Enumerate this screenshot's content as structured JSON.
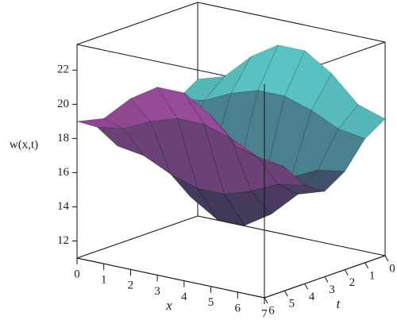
{
  "chart_data": {
    "type": "surface",
    "zlabel": "w(x,t)",
    "xlabel": "x",
    "ylabel": "t",
    "x": [
      0,
      1,
      2,
      3,
      4,
      5,
      6,
      7
    ],
    "t": [
      0,
      1,
      2,
      3,
      4,
      5,
      6
    ],
    "z": [
      [
        19,
        18.25,
        16.75,
        16,
        16.75,
        18.25,
        19
      ],
      [
        19.5,
        18.5,
        16.5,
        15.5,
        16.5,
        18.5,
        19.5
      ],
      [
        21,
        19.25,
        15.75,
        14,
        15.75,
        19.25,
        21
      ],
      [
        22,
        19.75,
        15.25,
        13,
        15.25,
        19.75,
        22
      ],
      [
        22,
        19.75,
        15.25,
        13,
        15.25,
        19.75,
        22
      ],
      [
        21,
        19.25,
        15.75,
        14,
        15.75,
        19.25,
        21
      ],
      [
        19.5,
        18.5,
        16.5,
        15.5,
        16.5,
        18.5,
        19.5
      ],
      [
        19,
        18.25,
        16.75,
        16,
        16.75,
        18.25,
        19
      ]
    ],
    "xlim": [
      0,
      7
    ],
    "tlim": [
      0,
      6
    ],
    "zlim": [
      11,
      23.5
    ],
    "xticks": [
      0,
      1,
      2,
      3,
      4,
      5,
      6,
      7
    ],
    "tticks": [
      0,
      1,
      2,
      3,
      4,
      5,
      6
    ],
    "zticks": [
      12,
      14,
      16,
      18,
      20,
      22
    ],
    "colors": [
      "#4fb8b3",
      "#3c3c5a",
      "#8c4088"
    ]
  }
}
